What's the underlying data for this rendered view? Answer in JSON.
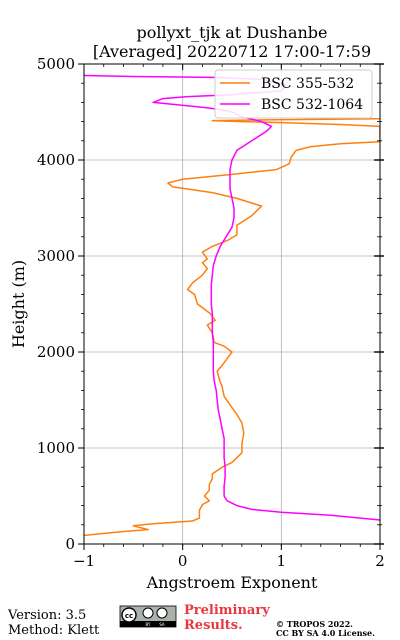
{
  "chart_data": {
    "type": "line",
    "title_line1": "pollyxt_tjk at Dushanbe",
    "title_line2": "[Averaged] 20220712 17:00-17:59",
    "xlabel": "Angstroem Exponent",
    "ylabel": "Height (m)",
    "xlim": [
      -1,
      2
    ],
    "ylim": [
      0,
      5000
    ],
    "xticks": [
      "−1",
      "0",
      "1",
      "2"
    ],
    "yticks": [
      "0",
      "1000",
      "2000",
      "3000",
      "4000",
      "5000"
    ],
    "grid": true,
    "legend_position": "top-right",
    "series": [
      {
        "name": "BSC 355-532",
        "color": "#ff7f0e",
        "points": [
          [
            -1.0,
            90
          ],
          [
            -0.6,
            130
          ],
          [
            -0.35,
            150
          ],
          [
            -0.5,
            190
          ],
          [
            -0.3,
            210
          ],
          [
            0.1,
            240
          ],
          [
            0.17,
            270
          ],
          [
            0.17,
            350
          ],
          [
            0.2,
            410
          ],
          [
            0.27,
            450
          ],
          [
            0.22,
            500
          ],
          [
            0.27,
            560
          ],
          [
            0.27,
            620
          ],
          [
            0.3,
            680
          ],
          [
            0.3,
            730
          ],
          [
            0.4,
            800
          ],
          [
            0.5,
            850
          ],
          [
            0.6,
            950
          ],
          [
            0.6,
            1050
          ],
          [
            0.62,
            1150
          ],
          [
            0.6,
            1260
          ],
          [
            0.55,
            1350
          ],
          [
            0.48,
            1450
          ],
          [
            0.42,
            1540
          ],
          [
            0.4,
            1640
          ],
          [
            0.37,
            1720
          ],
          [
            0.35,
            1800
          ],
          [
            0.4,
            1860
          ],
          [
            0.5,
            2000
          ],
          [
            0.42,
            2060
          ],
          [
            0.32,
            2100
          ],
          [
            0.3,
            2200
          ],
          [
            0.25,
            2280
          ],
          [
            0.33,
            2330
          ],
          [
            0.28,
            2400
          ],
          [
            0.15,
            2500
          ],
          [
            0.12,
            2600
          ],
          [
            0.05,
            2650
          ],
          [
            0.1,
            2720
          ],
          [
            0.2,
            2800
          ],
          [
            0.25,
            2870
          ],
          [
            0.2,
            2930
          ],
          [
            0.25,
            2970
          ],
          [
            0.2,
            3040
          ],
          [
            0.3,
            3100
          ],
          [
            0.45,
            3160
          ],
          [
            0.55,
            3220
          ],
          [
            0.55,
            3320
          ],
          [
            0.7,
            3420
          ],
          [
            0.8,
            3520
          ],
          [
            0.55,
            3600
          ],
          [
            0.3,
            3660
          ],
          [
            -0.1,
            3720
          ],
          [
            -0.15,
            3760
          ],
          [
            0.0,
            3800
          ],
          [
            0.5,
            3850
          ],
          [
            0.95,
            3900
          ],
          [
            1.08,
            3960
          ],
          [
            1.1,
            4030
          ],
          [
            1.15,
            4100
          ],
          [
            1.3,
            4140
          ],
          [
            1.6,
            4170
          ],
          [
            2.0,
            4190
          ],
          [
            2.0,
            4350
          ],
          [
            1.6,
            4370
          ],
          [
            1.0,
            4390
          ],
          [
            0.6,
            4400
          ],
          [
            0.3,
            4410
          ],
          [
            0.95,
            4420
          ],
          [
            2.0,
            4430
          ]
        ]
      },
      {
        "name": "BSC 532-1064",
        "color": "#ff00ff",
        "points": [
          [
            2.0,
            250
          ],
          [
            1.5,
            300
          ],
          [
            1.0,
            330
          ],
          [
            0.7,
            360
          ],
          [
            0.55,
            400
          ],
          [
            0.45,
            450
          ],
          [
            0.42,
            500
          ],
          [
            0.42,
            600
          ],
          [
            0.43,
            700
          ],
          [
            0.43,
            800
          ],
          [
            0.42,
            900
          ],
          [
            0.42,
            1000
          ],
          [
            0.42,
            1100
          ],
          [
            0.4,
            1200
          ],
          [
            0.38,
            1300
          ],
          [
            0.36,
            1400
          ],
          [
            0.35,
            1500
          ],
          [
            0.34,
            1600
          ],
          [
            0.32,
            1700
          ],
          [
            0.31,
            1800
          ],
          [
            0.31,
            1900
          ],
          [
            0.31,
            2000
          ],
          [
            0.31,
            2100
          ],
          [
            0.3,
            2200
          ],
          [
            0.3,
            2300
          ],
          [
            0.3,
            2400
          ],
          [
            0.29,
            2500
          ],
          [
            0.29,
            2600
          ],
          [
            0.29,
            2700
          ],
          [
            0.3,
            2800
          ],
          [
            0.31,
            2900
          ],
          [
            0.34,
            3000
          ],
          [
            0.38,
            3100
          ],
          [
            0.44,
            3200
          ],
          [
            0.5,
            3300
          ],
          [
            0.52,
            3400
          ],
          [
            0.52,
            3500
          ],
          [
            0.5,
            3600
          ],
          [
            0.48,
            3700
          ],
          [
            0.48,
            3800
          ],
          [
            0.48,
            3900
          ],
          [
            0.5,
            4000
          ],
          [
            0.55,
            4100
          ],
          [
            0.7,
            4200
          ],
          [
            0.85,
            4300
          ],
          [
            0.9,
            4350
          ],
          [
            0.8,
            4400
          ],
          [
            0.6,
            4450
          ],
          [
            0.5,
            4500
          ],
          [
            0.35,
            4530
          ],
          [
            0.2,
            4550
          ],
          [
            -0.3,
            4600
          ],
          [
            -0.2,
            4640
          ],
          [
            0.05,
            4660
          ],
          [
            0.5,
            4680
          ],
          [
            1.0,
            4720
          ],
          [
            1.05,
            4780
          ],
          [
            0.8,
            4840
          ],
          [
            0.3,
            4860
          ],
          [
            -0.5,
            4870
          ],
          [
            -1.0,
            4880
          ]
        ]
      }
    ]
  },
  "footer": {
    "version": "Version: 3.5",
    "method": "Method: Klett",
    "cc_badge": "cc by sa",
    "prelim_line1": "Preliminary",
    "prelim_line2": "Results.",
    "license_line1": "© TROPOS 2022.",
    "license_line2": "CC BY SA 4.0 License."
  }
}
